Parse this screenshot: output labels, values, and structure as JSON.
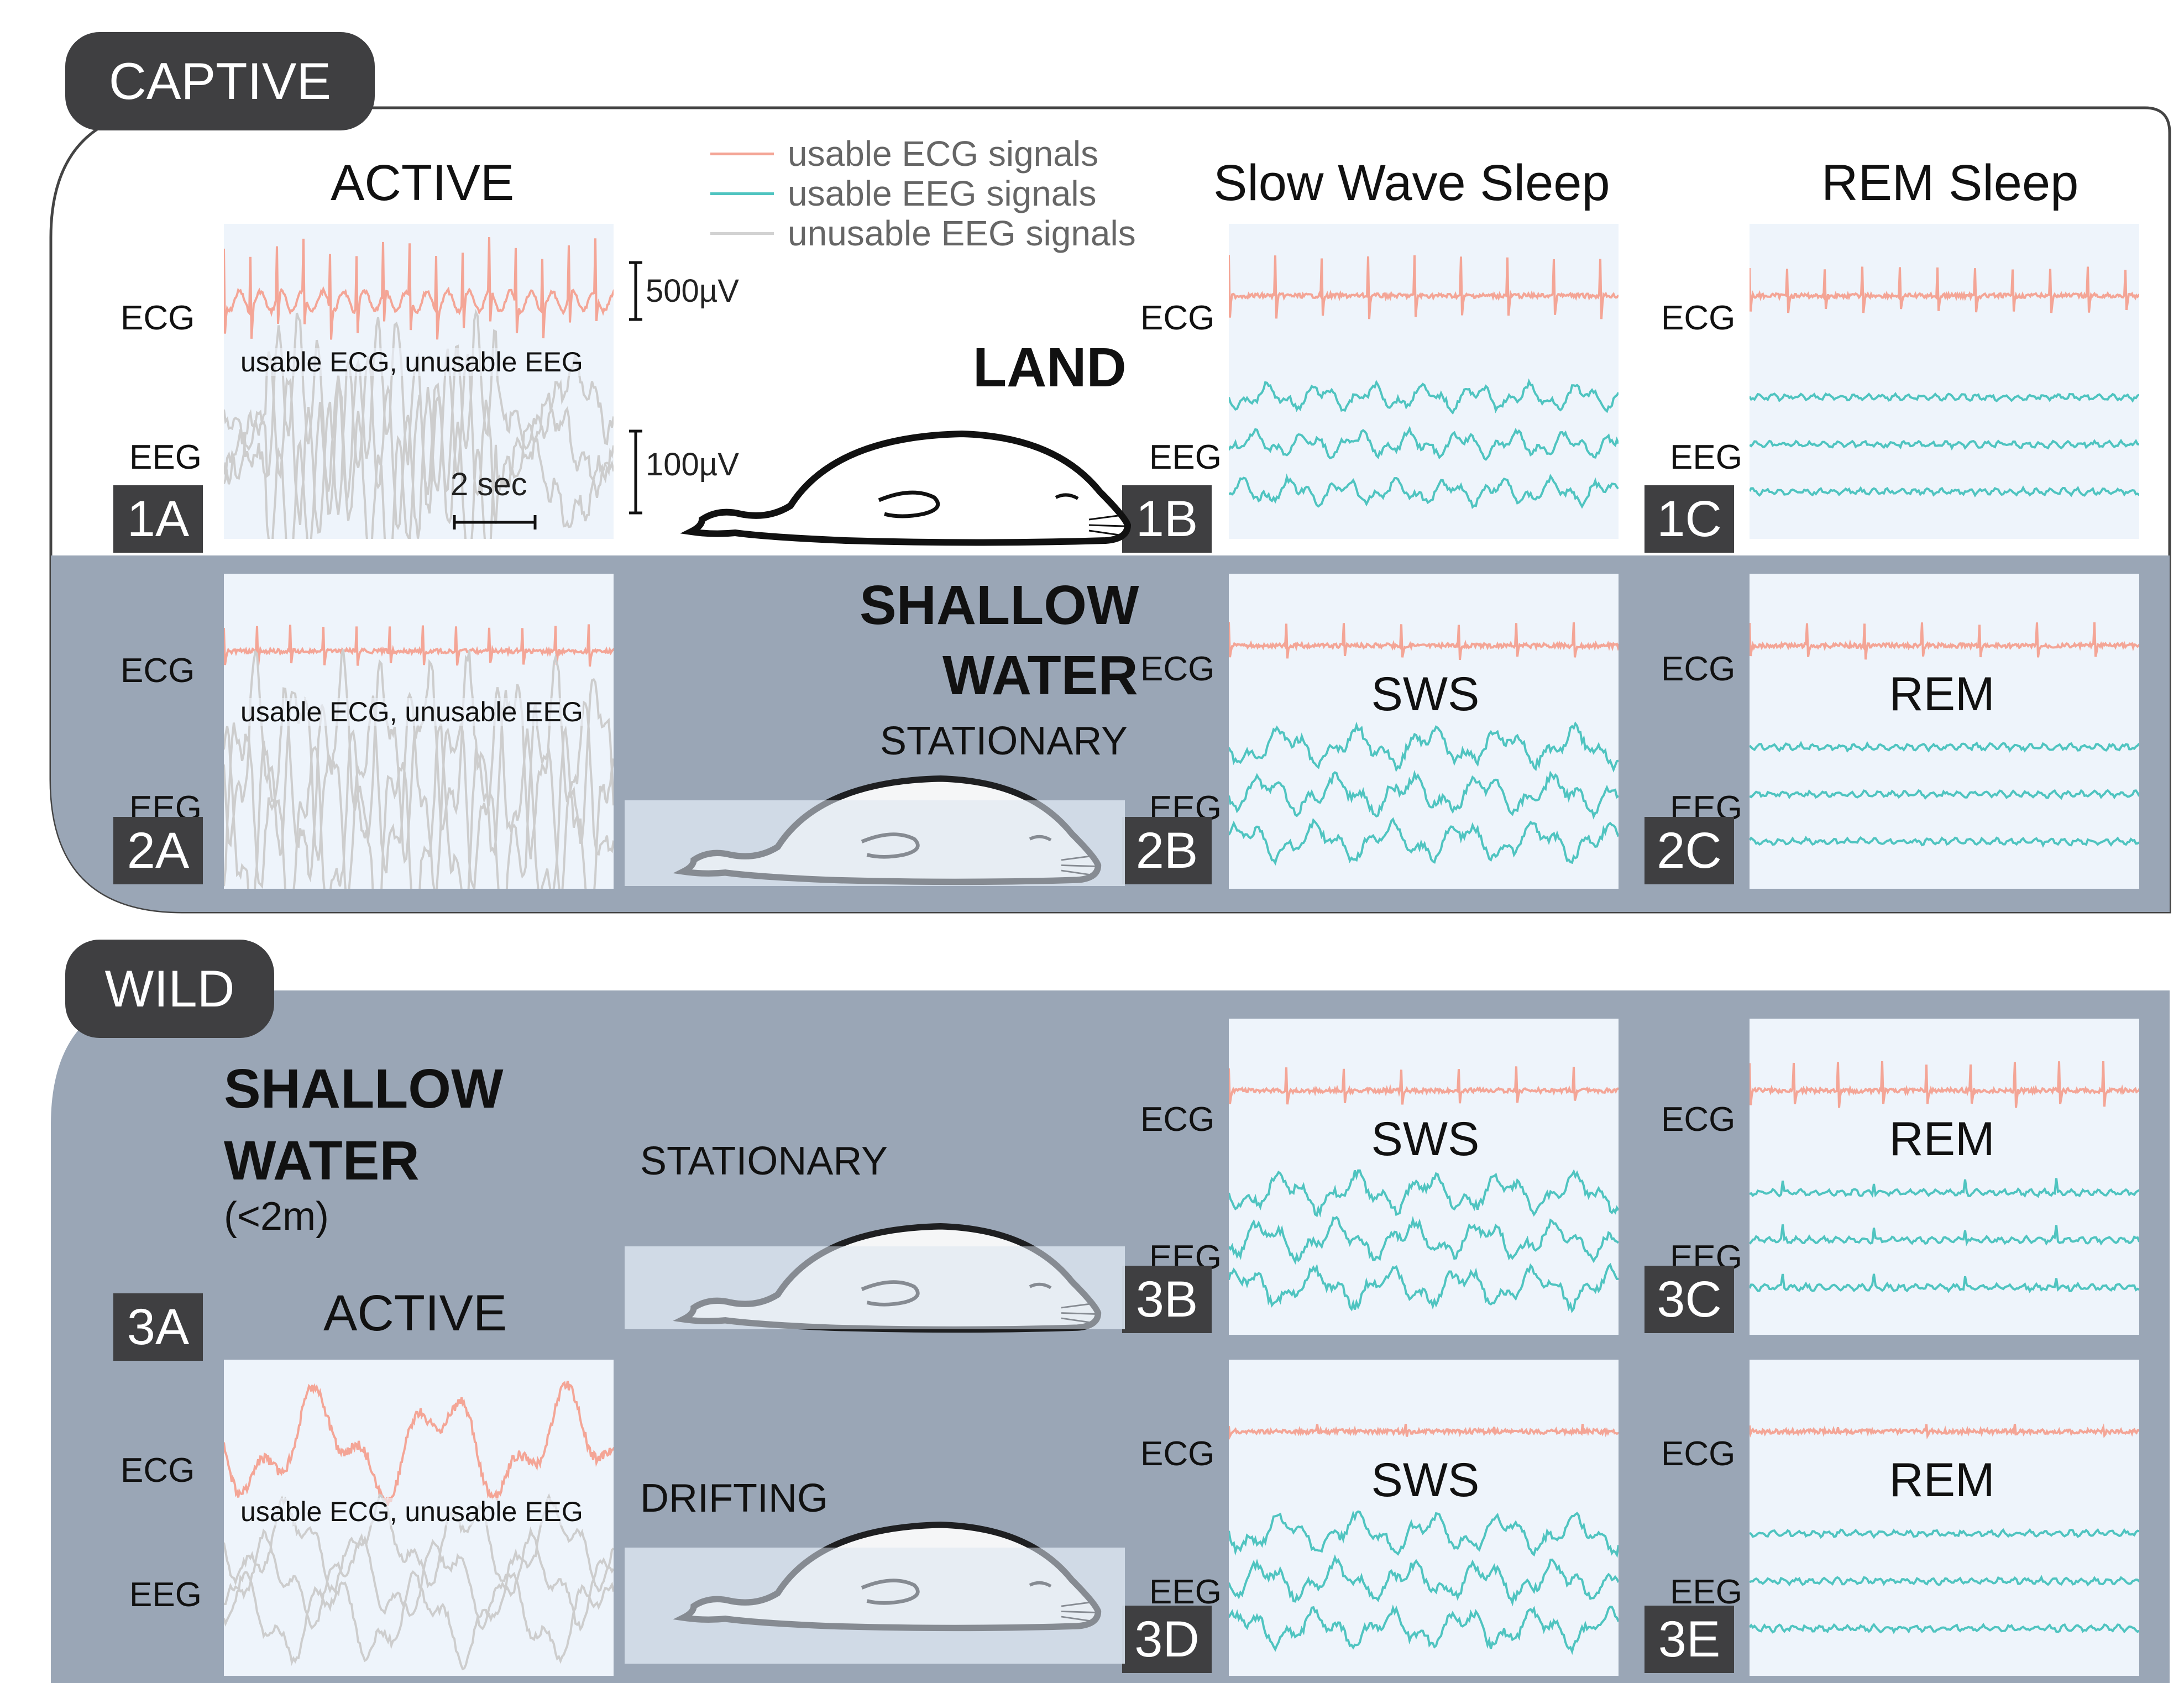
{
  "sections": {
    "captive": "CAPTIVE",
    "wild": "WILD"
  },
  "column_titles": {
    "active": "ACTIVE",
    "sws": "Slow Wave Sleep",
    "rem": "REM Sleep"
  },
  "legend": [
    {
      "label": "usable ECG signals",
      "color": "#f4a596"
    },
    {
      "label": "usable EEG signals",
      "color": "#4fc4c0"
    },
    {
      "label": "unusable EEG signals",
      "color": "#d2d2d2"
    }
  ],
  "channel_labels": {
    "ecg": "ECG",
    "eeg": "EEG"
  },
  "scale_bars": {
    "ecg": "500µV",
    "eeg": "100µV",
    "time": "2 sec"
  },
  "environments": {
    "land": "LAND",
    "shallow": "SHALLOW",
    "water": "WATER",
    "depth": "(<2m)",
    "wild_active": "ACTIVE"
  },
  "behaviors": {
    "stationary": "STATIONARY",
    "drifting": "DRIFTING"
  },
  "notes": {
    "usable_note": "usable ECG, unusable EEG"
  },
  "state_labels": {
    "sws": "SWS",
    "rem": "REM"
  },
  "panel_ids": {
    "p1a": "1A",
    "p1b": "1B",
    "p1c": "1C",
    "p2a": "2A",
    "p2b": "2B",
    "p2c": "2C",
    "p3a": "3A",
    "p3b": "3B",
    "p3c": "3C",
    "p3d": "3D",
    "p3e": "3E"
  },
  "colors": {
    "ecg": "#f4a596",
    "eeg_usable": "#4fc4c0",
    "eeg_unusable": "#cdcdcd",
    "water_band": "#9aa6b6",
    "tag": "#3f3f41",
    "panel_bg": "#eef4fb"
  }
}
